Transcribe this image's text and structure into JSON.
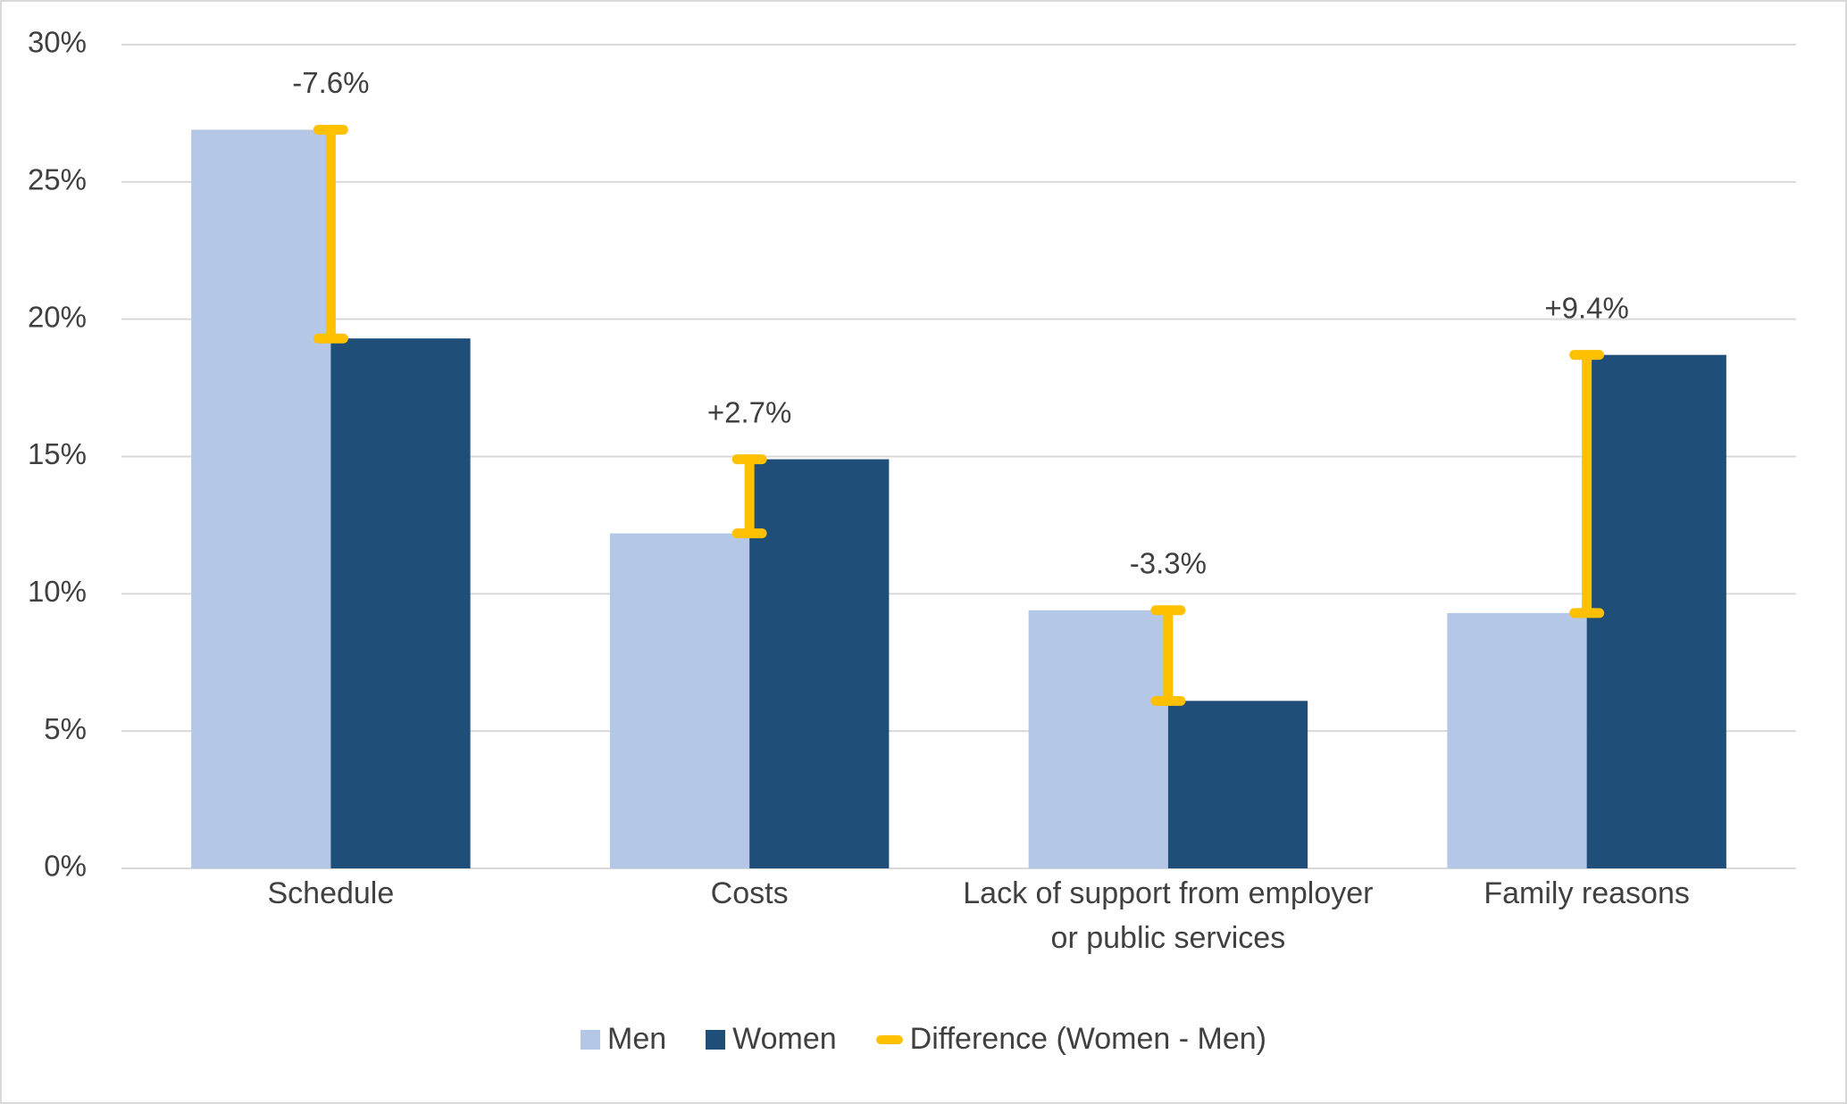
{
  "chart_data": {
    "type": "bar",
    "categories": [
      "Schedule",
      "Costs",
      "Lack of support from employer or public services",
      "Family reasons"
    ],
    "series": [
      {
        "name": "Men",
        "color": "#B4C7E7",
        "values": [
          26.9,
          12.2,
          9.4,
          9.3
        ]
      },
      {
        "name": "Women",
        "color": "#1F4E79",
        "values": [
          19.3,
          14.9,
          6.1,
          18.7
        ]
      },
      {
        "name": "Difference (Women - Men)",
        "color": "#FFC000",
        "values": [
          -7.6,
          2.7,
          -3.3,
          9.4
        ],
        "value_labels": [
          "-7.6%",
          "+2.7%",
          "-3.3%",
          "+9.4%"
        ]
      }
    ],
    "ylim": [
      0,
      30
    ],
    "yticks": [
      {
        "value": 0,
        "label": "0%"
      },
      {
        "value": 5,
        "label": "5%"
      },
      {
        "value": 10,
        "label": "10%"
      },
      {
        "value": 15,
        "label": "15%"
      },
      {
        "value": 20,
        "label": "20%"
      },
      {
        "value": 25,
        "label": "25%"
      },
      {
        "value": 30,
        "label": "30%"
      }
    ],
    "grid": true,
    "legend": "bottom"
  }
}
